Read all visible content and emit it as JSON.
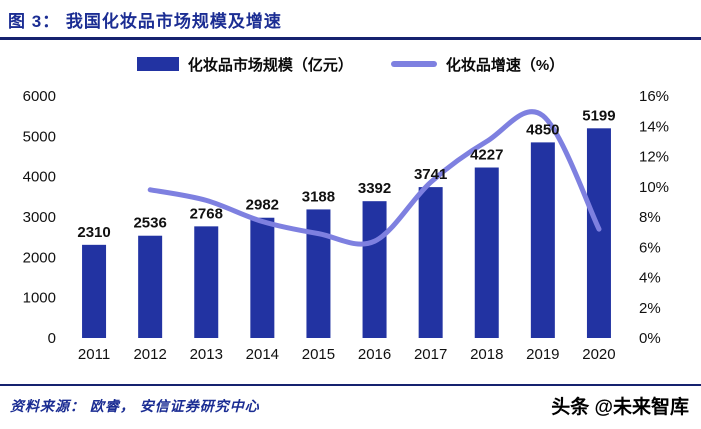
{
  "title": "图 3：  我国化妆品市场规模及增速",
  "legend": {
    "bars_label": "化妆品市场规模（亿元）",
    "line_label": "化妆品增速（%）"
  },
  "footer": {
    "source": "资料来源：  欧睿，  安信证券研究中心",
    "watermark": "头条 @未来智库"
  },
  "colors": {
    "bar": "#2233A2",
    "line": "#7E80E0",
    "accent": "#15226F"
  },
  "chart_data": {
    "type": "bar+line",
    "title": "我国化妆品市场规模及增速",
    "categories": [
      "2011",
      "2012",
      "2013",
      "2014",
      "2015",
      "2016",
      "2017",
      "2018",
      "2019",
      "2020"
    ],
    "series": [
      {
        "name": "化妆品市场规模（亿元）",
        "type": "bar",
        "axis": "left",
        "values": [
          2310,
          2536,
          2768,
          2982,
          3188,
          3392,
          3741,
          4227,
          4850,
          5199
        ]
      },
      {
        "name": "化妆品增速（%）",
        "type": "line",
        "axis": "right",
        "values": [
          null,
          9.8,
          9.1,
          7.7,
          6.9,
          6.4,
          10.3,
          13.0,
          14.7,
          7.2
        ]
      }
    ],
    "left_axis": {
      "min": 0,
      "max": 6000,
      "step": 1000
    },
    "right_axis": {
      "min": 0,
      "max": 16,
      "step": 2,
      "suffix": "%"
    },
    "grid": false,
    "legend_position": "top"
  }
}
